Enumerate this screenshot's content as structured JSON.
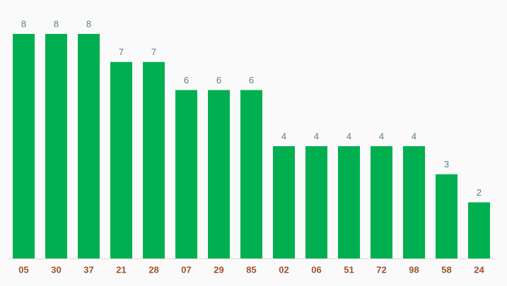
{
  "chart_data": {
    "type": "bar",
    "categories": [
      "05",
      "30",
      "37",
      "21",
      "28",
      "07",
      "29",
      "85",
      "02",
      "06",
      "51",
      "72",
      "98",
      "58",
      "24"
    ],
    "values": [
      8,
      8,
      8,
      7,
      7,
      6,
      6,
      6,
      4,
      4,
      4,
      4,
      4,
      3,
      2
    ],
    "color": "#00b050"
  }
}
